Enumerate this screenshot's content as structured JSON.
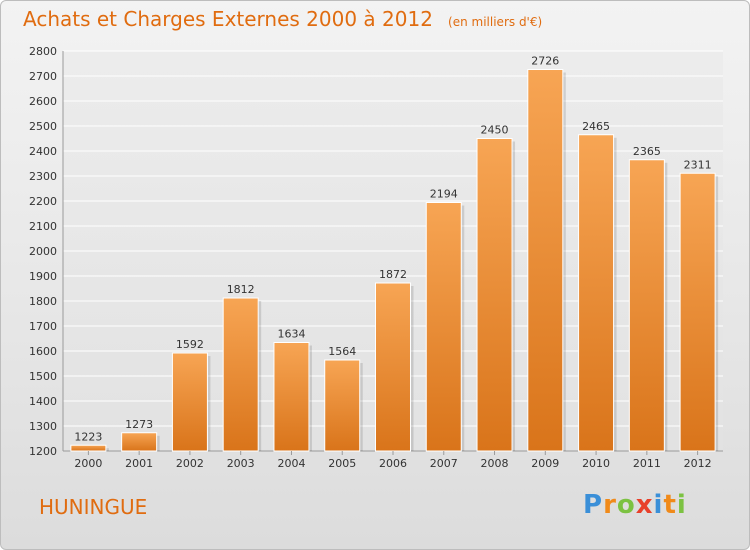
{
  "title": "Achats et Charges Externes 2000 à 2012",
  "unit_note": "(en milliers d'€)",
  "commune": "HUNINGUE",
  "logo": {
    "text": "Proxiti",
    "letters": [
      {
        "ch": "P",
        "color": "#3a8fd8"
      },
      {
        "ch": "r",
        "color": "#f08a1a"
      },
      {
        "ch": "o",
        "color": "#7cc242"
      },
      {
        "ch": "x",
        "color": "#e8402a"
      },
      {
        "ch": "i",
        "color": "#3a8fd8"
      },
      {
        "ch": "t",
        "color": "#f08a1a"
      },
      {
        "ch": "i",
        "color": "#7cc242"
      }
    ]
  },
  "colors": {
    "title": "#e06c10",
    "bar_top": "#f7a554",
    "bar_bottom": "#d9741a"
  },
  "chart_data": {
    "type": "bar",
    "categories": [
      "2000",
      "2001",
      "2002",
      "2003",
      "2004",
      "2005",
      "2006",
      "2007",
      "2008",
      "2009",
      "2010",
      "2011",
      "2012"
    ],
    "values": [
      1223,
      1273,
      1592,
      1812,
      1634,
      1564,
      1872,
      2194,
      2450,
      2726,
      2465,
      2365,
      2311
    ],
    "ylim": [
      1200,
      2800
    ],
    "yticks": [
      1200,
      1300,
      1400,
      1500,
      1600,
      1700,
      1800,
      1900,
      2000,
      2100,
      2200,
      2300,
      2400,
      2500,
      2600,
      2700,
      2800
    ],
    "grid": true,
    "data_labels": true
  }
}
